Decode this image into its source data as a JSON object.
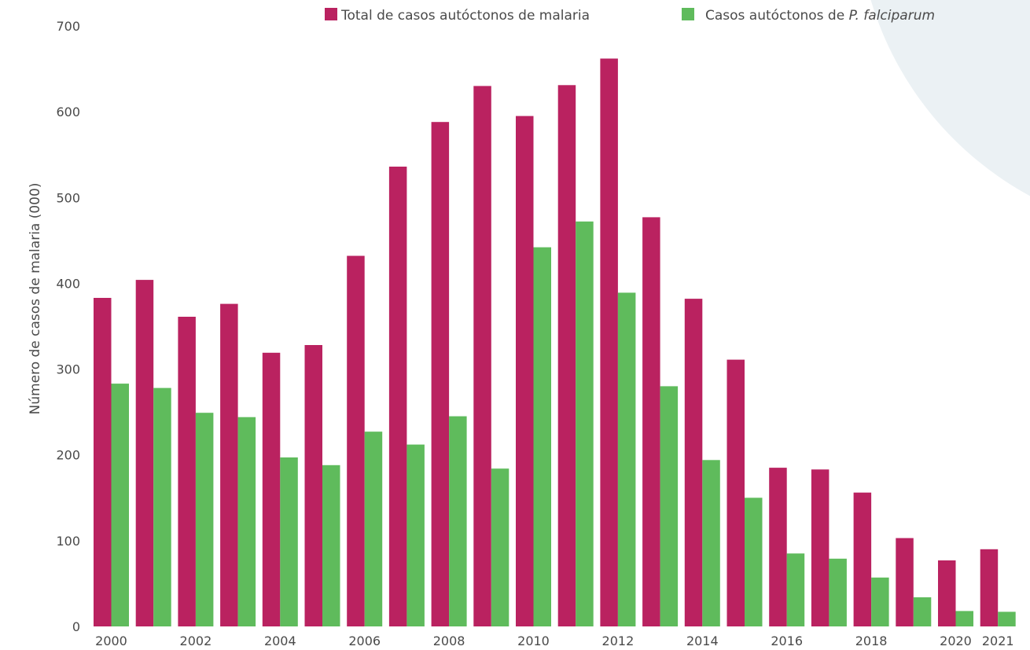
{
  "colors": {
    "total": "#BA2260",
    "falciparum": "#5FBB5C",
    "background_accent": "#E4ECF0"
  },
  "chart_data": {
    "type": "bar",
    "title": "",
    "xlabel": "",
    "ylabel": "Número de casos de malaria (000)",
    "ylim": [
      0,
      700
    ],
    "yticks": [
      0,
      100,
      200,
      300,
      400,
      500,
      600,
      700
    ],
    "categories": [
      "2000",
      "2001",
      "2002",
      "2003",
      "2004",
      "2005",
      "2006",
      "2007",
      "2008",
      "2009",
      "2010",
      "2011",
      "2012",
      "2013",
      "2014",
      "2015",
      "2016",
      "2017",
      "2018",
      "2019",
      "2020",
      "2021"
    ],
    "xtick_labels": [
      "2000",
      "2002",
      "2004",
      "2006",
      "2008",
      "2010",
      "2012",
      "2014",
      "2016",
      "2018",
      "2020",
      "2021"
    ],
    "legend_position": "top-right",
    "series": [
      {
        "name": "Total de casos autóctonos de malaria",
        "values": [
          383,
          404,
          361,
          376,
          319,
          328,
          432,
          536,
          588,
          630,
          595,
          631,
          662,
          477,
          382,
          311,
          185,
          183,
          156,
          103,
          77,
          90
        ]
      },
      {
        "name_prefix": "Casos autóctonos de ",
        "name_italic": "P. falciparum",
        "values": [
          283,
          278,
          249,
          244,
          197,
          188,
          227,
          212,
          245,
          184,
          442,
          472,
          389,
          280,
          194,
          150,
          85,
          79,
          57,
          34,
          18,
          17
        ]
      }
    ]
  }
}
